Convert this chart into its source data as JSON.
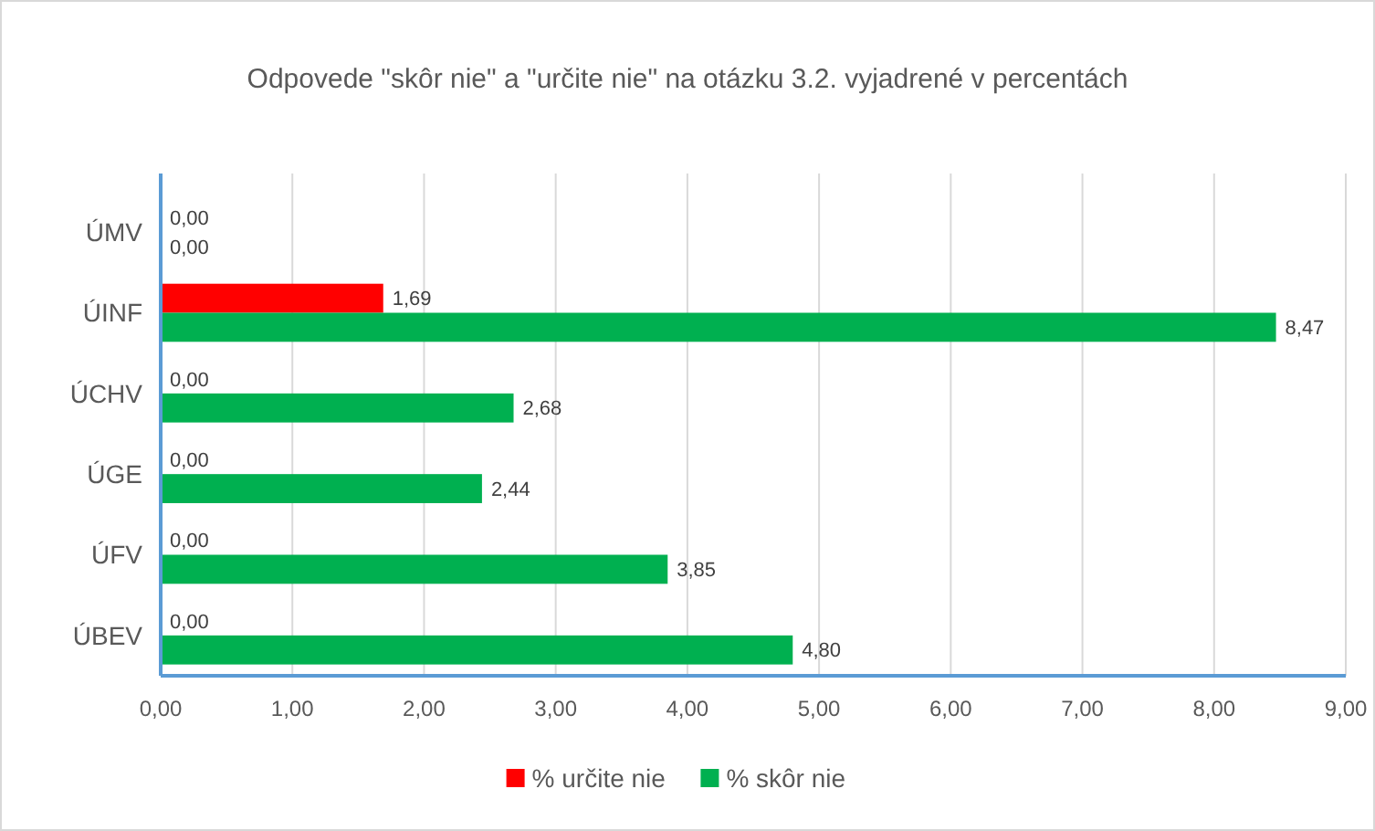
{
  "chart_data": {
    "type": "bar",
    "orientation": "horizontal",
    "title": "Odpovede \"skôr nie\" a \"určite nie\" na otázku 3.2. vyjadrené v percentách",
    "categories": [
      "ÚMV",
      "ÚINF",
      "ÚCHV",
      "ÚGE",
      "ÚFV",
      "ÚBEV"
    ],
    "series": [
      {
        "name": "% určite nie",
        "color": "#ff0000",
        "values": [
          0,
          1.69,
          0,
          0,
          0,
          0
        ],
        "value_labels": [
          "0,00",
          "1,69",
          "0,00",
          "0,00",
          "0,00",
          "0,00"
        ]
      },
      {
        "name": "% skôr nie",
        "color": "#00b050",
        "values": [
          0,
          8.47,
          2.68,
          2.44,
          3.85,
          4.8
        ],
        "value_labels": [
          "0,00",
          "8,47",
          "2,68",
          "2,44",
          "3,85",
          "4,80"
        ]
      }
    ],
    "xlim": [
      0,
      9
    ],
    "xticks": [
      {
        "value": 0,
        "label": "0,00"
      },
      {
        "value": 1,
        "label": "1,00"
      },
      {
        "value": 2,
        "label": "2,00"
      },
      {
        "value": 3,
        "label": "3,00"
      },
      {
        "value": 4,
        "label": "4,00"
      },
      {
        "value": 5,
        "label": "5,00"
      },
      {
        "value": 6,
        "label": "6,00"
      },
      {
        "value": 7,
        "label": "7,00"
      },
      {
        "value": 8,
        "label": "8,00"
      },
      {
        "value": 9,
        "label": "9,00"
      }
    ],
    "grid": "x",
    "legend": "bottom"
  }
}
